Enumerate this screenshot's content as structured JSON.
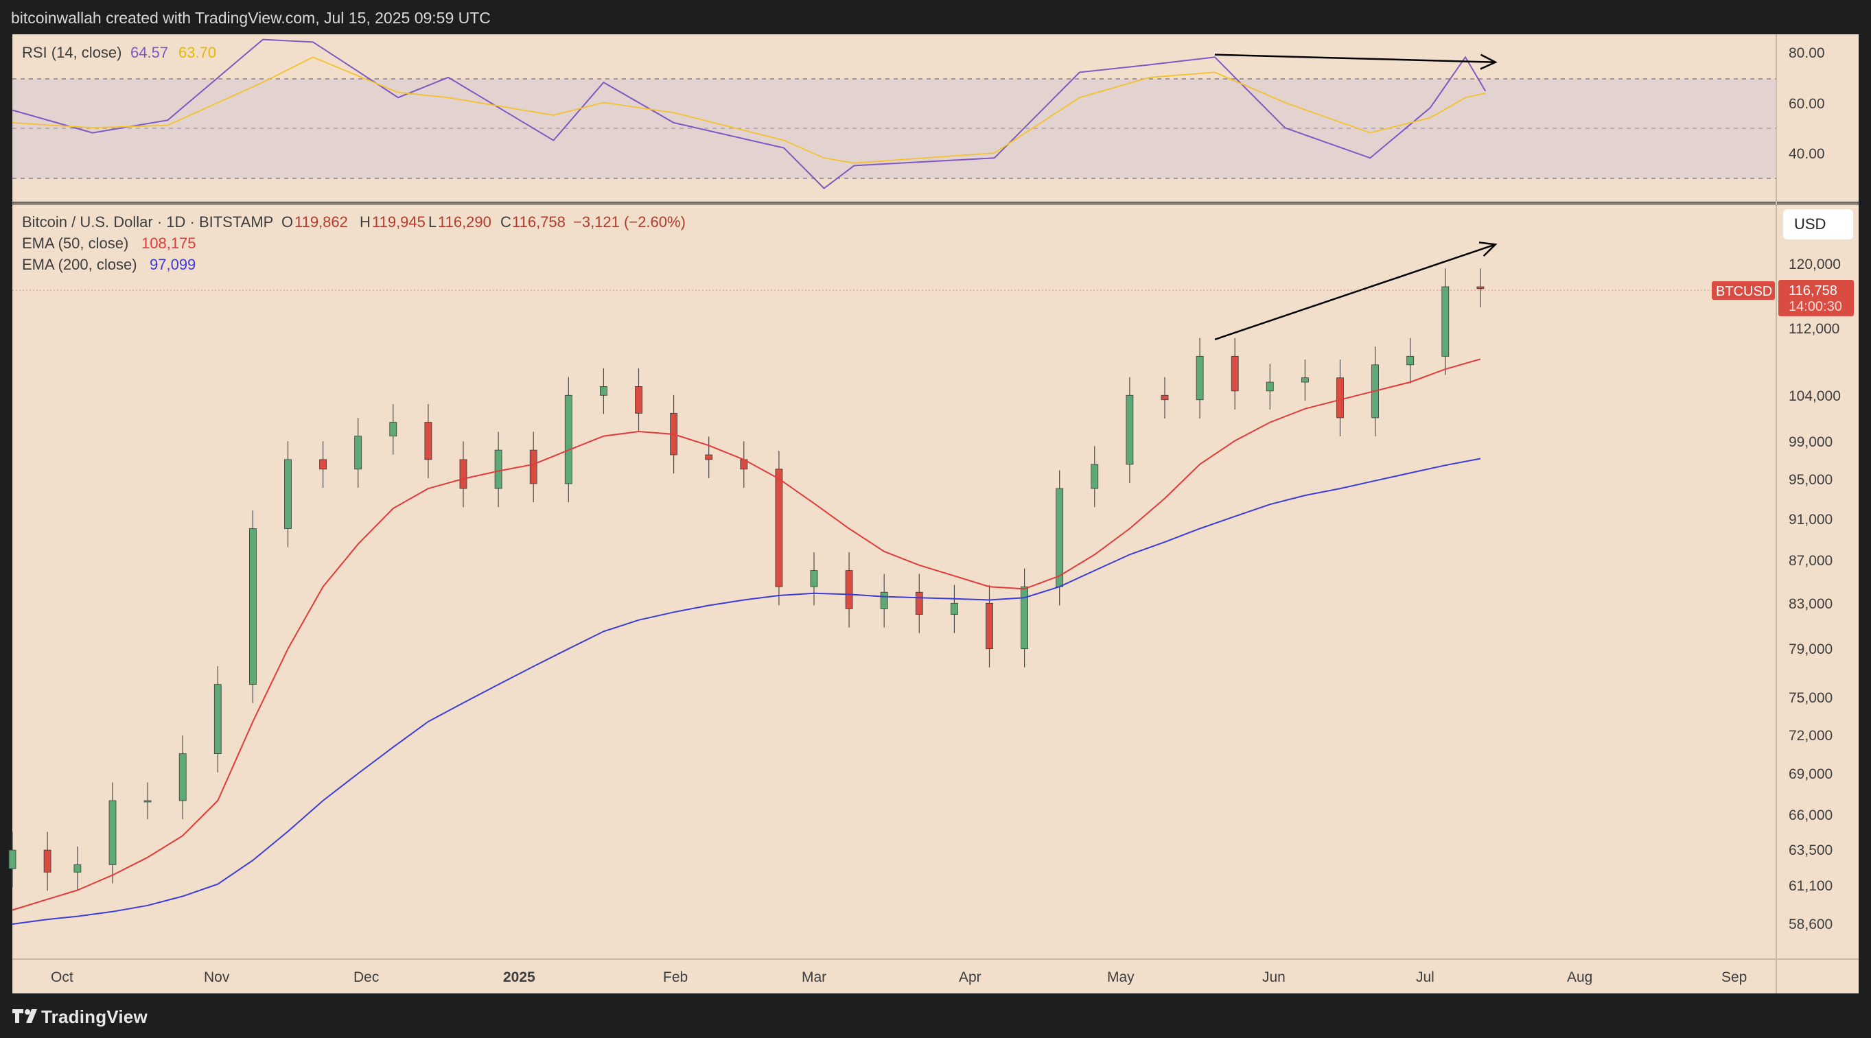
{
  "header": {
    "attribution": "bitcoinwallah created with TradingView.com, Jul 15, 2025 09:59 UTC"
  },
  "footer": {
    "brand": "TradingView"
  },
  "rsi_panel": {
    "title": "RSI (14, close)",
    "rsi_value": "64.57",
    "ma_value": "63.70",
    "axis_labels": [
      "80.00",
      "60.00",
      "40.00"
    ],
    "colors": {
      "rsi": "#7e57c2",
      "ma": "#f2c12e",
      "band": "#d7c9d6"
    }
  },
  "price_panel": {
    "symbol": "Bitcoin / U.S. Dollar · 1D · BITSTAMP",
    "o_label": "O",
    "o_value": "119,862",
    "h_label": "H",
    "h_value": "119,945",
    "l_label": "L",
    "l_value": "116,290",
    "c_label": "C",
    "c_value": "116,758",
    "change": "−3,121 (−2.60%)",
    "ema50_label": "EMA (50, close)",
    "ema50_value": "108,175",
    "ema200_label": "EMA (200, close)",
    "ema200_value": "97,099",
    "currency": "USD",
    "ticker": "BTCUSD",
    "last_price": "116,758",
    "countdown": "14:00:30",
    "axis_labels": [
      "120,000",
      "112,000",
      "104,000",
      "99,000",
      "95,000",
      "91,000",
      "87,000",
      "83,000",
      "79,000",
      "75,000",
      "72,000",
      "69,000",
      "66,000",
      "63,500",
      "61,100",
      "58,600"
    ],
    "colors": {
      "up": "#5fa877",
      "down": "#d94c42",
      "ema50": "#e03a3a",
      "ema200": "#3b3bdc",
      "background": "#f2dfcb"
    }
  },
  "time_axis": {
    "labels": [
      "Oct",
      "Nov",
      "Dec",
      "2025",
      "Feb",
      "Mar",
      "Apr",
      "May",
      "Jun",
      "Jul",
      "Aug",
      "Sep"
    ]
  },
  "chart_data": [
    {
      "type": "line",
      "title": "RSI (14, close)",
      "ylim": [
        24,
        90
      ],
      "x": [
        "2024-09-24",
        "2024-10-10",
        "2024-10-25",
        "2024-11-13",
        "2024-11-23",
        "2024-12-10",
        "2024-12-20",
        "2025-01-10",
        "2025-01-20",
        "2025-02-03",
        "2025-02-25",
        "2025-03-05",
        "2025-03-11",
        "2025-04-08",
        "2025-04-25",
        "2025-05-09",
        "2025-05-22",
        "2025-06-05",
        "2025-06-22",
        "2025-07-04",
        "2025-07-11",
        "2025-07-15"
      ],
      "series": [
        {
          "name": "RSI",
          "values": [
            57,
            48,
            53,
            85,
            84,
            62,
            70,
            45,
            68,
            52,
            42,
            26,
            35,
            38,
            72,
            75,
            78,
            50,
            38,
            58,
            78,
            64.57
          ]
        },
        {
          "name": "RSI-based MA",
          "values": [
            52,
            50,
            51,
            68,
            78,
            64,
            62,
            55,
            60,
            56,
            45,
            38,
            36,
            40,
            62,
            70,
            72,
            60,
            48,
            54,
            62,
            63.7
          ]
        }
      ],
      "annotations": [
        {
          "type": "trendline",
          "from": [
            "2025-05-22",
            79
          ],
          "to": [
            "2025-07-17",
            76
          ]
        }
      ]
    },
    {
      "type": "candlestick",
      "title": "Bitcoin / U.S. Dollar · 1D · BITSTAMP",
      "ylim": [
        58000,
        121500
      ],
      "x": [
        "2024-09-24",
        "2024-10-01",
        "2024-10-07",
        "2024-10-14",
        "2024-10-21",
        "2024-10-28",
        "2024-11-04",
        "2024-11-11",
        "2024-11-18",
        "2024-11-25",
        "2024-12-02",
        "2024-12-09",
        "2024-12-16",
        "2024-12-23",
        "2024-12-30",
        "2025-01-06",
        "2025-01-13",
        "2025-01-20",
        "2025-01-27",
        "2025-02-03",
        "2025-02-10",
        "2025-02-17",
        "2025-02-24",
        "2025-03-03",
        "2025-03-10",
        "2025-03-17",
        "2025-03-24",
        "2025-03-31",
        "2025-04-07",
        "2025-04-14",
        "2025-04-21",
        "2025-04-28",
        "2025-05-05",
        "2025-05-12",
        "2025-05-19",
        "2025-05-26",
        "2025-06-02",
        "2025-06-09",
        "2025-06-16",
        "2025-06-23",
        "2025-06-30",
        "2025-07-07",
        "2025-07-14"
      ],
      "series": [
        {
          "name": "Close",
          "values": [
            63500,
            62000,
            62500,
            67000,
            67000,
            70500,
            76000,
            90000,
            97000,
            96000,
            99500,
            101000,
            97000,
            94000,
            98000,
            94500,
            104000,
            105000,
            102000,
            97500,
            97000,
            96000,
            84500,
            86000,
            82500,
            84000,
            82000,
            83000,
            79000,
            84500,
            94000,
            96500,
            104000,
            103500,
            108500,
            104500,
            105500,
            106000,
            101500,
            107500,
            108500,
            117000,
            116758
          ]
        },
        {
          "name": "EMA (50, close)",
          "values": [
            59500,
            60200,
            60800,
            61800,
            63000,
            64500,
            67000,
            73000,
            79000,
            84500,
            88500,
            92000,
            94000,
            95000,
            95800,
            96500,
            98000,
            99500,
            100000,
            99700,
            98500,
            97000,
            95000,
            92500,
            90000,
            87800,
            86500,
            85500,
            84500,
            84300,
            85500,
            87500,
            90000,
            93000,
            96500,
            99000,
            101000,
            102500,
            103500,
            104500,
            105500,
            107000,
            108175
          ]
        },
        {
          "name": "EMA (200, close)",
          "values": [
            58600,
            58900,
            59100,
            59400,
            59800,
            60400,
            61200,
            62800,
            64800,
            67000,
            69000,
            71000,
            73000,
            74500,
            76000,
            77500,
            79000,
            80500,
            81500,
            82200,
            82800,
            83300,
            83700,
            83900,
            83800,
            83600,
            83500,
            83400,
            83300,
            83500,
            84500,
            86000,
            87500,
            88700,
            90000,
            91200,
            92400,
            93300,
            94000,
            94800,
            95600,
            96400,
            97099
          ]
        }
      ],
      "annotations": [
        {
          "type": "trendline",
          "from": [
            "2025-05-22",
            110500
          ],
          "to": [
            "2025-07-17",
            122500
          ]
        }
      ]
    }
  ]
}
